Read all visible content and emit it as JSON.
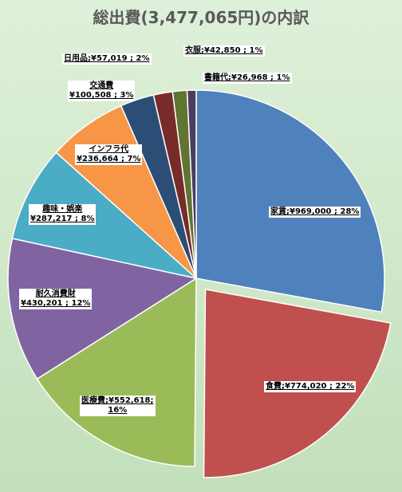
{
  "chart_data": {
    "type": "pie",
    "title": "総出費(3,477,065円)の内訳",
    "slices": [
      {
        "label": "家賃",
        "value": 969000,
        "value_text": "¥969,000",
        "percent": "28%",
        "color": "#4f81bd"
      },
      {
        "label": "食費",
        "value": 774020,
        "value_text": "¥774,020",
        "percent": "22%",
        "color": "#c0504d"
      },
      {
        "label": "医療費",
        "value": 552618,
        "value_text": "¥552,618",
        "percent": "16%",
        "color": "#9bbb59"
      },
      {
        "label": "耐久消費財",
        "value": 430201,
        "value_text": "¥430,201",
        "percent": "12%",
        "color": "#8064a2"
      },
      {
        "label": "趣味・娯楽",
        "value": 287217,
        "value_text": "¥287,217",
        "percent": "8%",
        "color": "#4bacc6"
      },
      {
        "label": "インフラ代",
        "value": 236664,
        "value_text": "¥236,664",
        "percent": "7%",
        "color": "#f79646"
      },
      {
        "label": "交通費",
        "value": 100508,
        "value_text": "¥100,508",
        "percent": "3%",
        "color": "#2c4d75"
      },
      {
        "label": "日用品",
        "value": 57019,
        "value_text": "¥57,019",
        "percent": "2%",
        "color": "#772c2a"
      },
      {
        "label": "衣服",
        "value": 42850,
        "value_text": "¥42,850",
        "percent": "1%",
        "color": "#5f7530"
      },
      {
        "label": "書籍代",
        "value": 26968,
        "value_text": "¥26,968",
        "percent": "1%",
        "color": "#4d3b62"
      }
    ],
    "exploded": [
      "食費"
    ]
  }
}
